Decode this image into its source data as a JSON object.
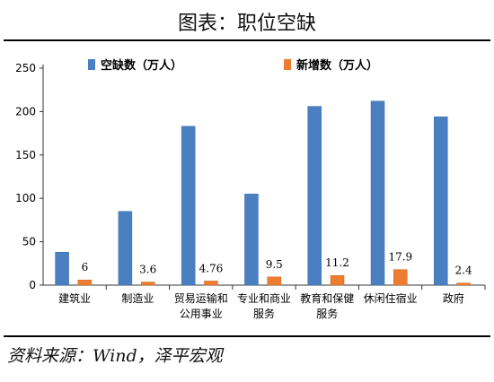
{
  "title": "图表：职位空缺",
  "source": "资料来源：Wind，泽平宏观",
  "chart_data": {
    "type": "bar",
    "title": "图表：职位空缺",
    "categories": [
      [
        "建筑业"
      ],
      [
        "制造业"
      ],
      [
        "贸易运输和",
        "公用事业"
      ],
      [
        "专业和商业",
        "服务"
      ],
      [
        "教育和保健",
        "服务"
      ],
      [
        "休闲住宿业"
      ],
      [
        "政府"
      ]
    ],
    "series": [
      {
        "name": "空缺数（万人）",
        "color": "#4a7fc1",
        "values": [
          38,
          85,
          183,
          105,
          206,
          212,
          194
        ],
        "labels": null
      },
      {
        "name": "新增数（万人）",
        "color": "#ed7d31",
        "values": [
          6,
          3.6,
          4.76,
          9.5,
          11.2,
          17.9,
          2.4
        ],
        "labels": [
          "6",
          "3.6",
          "4.76",
          "9.5",
          "11.2",
          "17.9",
          "2.4"
        ]
      }
    ],
    "ylim": [
      0,
      250
    ],
    "yticks": [
      0,
      50,
      100,
      150,
      200,
      250
    ],
    "grid": false,
    "legend": "top"
  }
}
